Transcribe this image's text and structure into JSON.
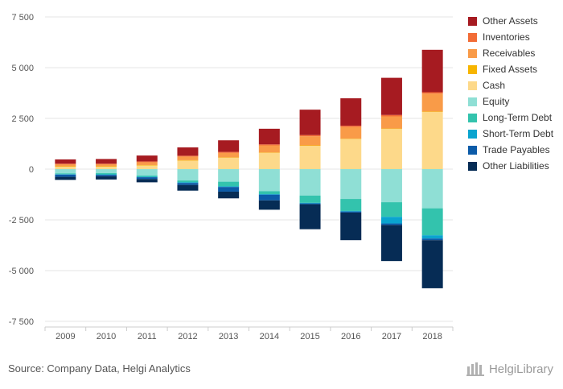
{
  "chart_data": {
    "type": "bar",
    "stacked": true,
    "categories": [
      "2009",
      "2010",
      "2011",
      "2012",
      "2013",
      "2014",
      "2015",
      "2016",
      "2017",
      "2018"
    ],
    "ylim": [
      -7500,
      7500
    ],
    "yticks": [
      7500,
      5000,
      2500,
      0,
      -2500,
      -5000,
      -7500
    ],
    "ytick_labels": [
      "7 500",
      "5 000",
      "2 500",
      "0",
      "-2 500",
      "-5 000",
      "-7 500"
    ],
    "grid": true,
    "legend_position": "right",
    "series": [
      {
        "name": "Cash",
        "color": "#fdd98a",
        "group": "assets",
        "values": [
          120,
          120,
          180,
          420,
          560,
          800,
          1150,
          1480,
          1980,
          2820
        ]
      },
      {
        "name": "Fixed Assets",
        "color": "#f7b500",
        "group": "assets",
        "values": [
          20,
          20,
          20,
          20,
          20,
          20,
          20,
          20,
          20,
          20
        ]
      },
      {
        "name": "Receivables",
        "color": "#f99b48",
        "group": "assets",
        "values": [
          100,
          100,
          140,
          180,
          220,
          350,
          450,
          580,
          600,
          880
        ]
      },
      {
        "name": "Inventories",
        "color": "#f26c36",
        "group": "assets",
        "values": [
          30,
          30,
          40,
          40,
          50,
          50,
          60,
          60,
          70,
          70
        ]
      },
      {
        "name": "Other Assets",
        "color": "#a61b21",
        "group": "assets",
        "values": [
          210,
          230,
          290,
          410,
          570,
          770,
          1250,
          1350,
          1830,
          2090
        ]
      },
      {
        "name": "Equity",
        "color": "#8fdfd5",
        "group": "liabilities",
        "values": [
          -210,
          -200,
          -320,
          -560,
          -620,
          -1090,
          -1300,
          -1470,
          -1630,
          -1930
        ]
      },
      {
        "name": "Long-Term Debt",
        "color": "#33c3ad",
        "group": "liabilities",
        "values": [
          -40,
          -60,
          -60,
          -90,
          -230,
          -140,
          -360,
          -590,
          -720,
          -1330
        ]
      },
      {
        "name": "Short-Term Debt",
        "color": "#0aa4cf",
        "group": "liabilities",
        "values": [
          -20,
          -20,
          -20,
          -30,
          -30,
          -30,
          -30,
          -30,
          -330,
          -160
        ]
      },
      {
        "name": "Trade Payables",
        "color": "#0c5ba8",
        "group": "liabilities",
        "values": [
          -110,
          -70,
          -90,
          -100,
          -230,
          -280,
          -40,
          -50,
          -70,
          -80
        ]
      },
      {
        "name": "Other Liabilities",
        "color": "#062c55",
        "group": "liabilities",
        "values": [
          -150,
          -160,
          -160,
          -280,
          -330,
          -460,
          -1230,
          -1360,
          -1780,
          -2370
        ]
      }
    ]
  },
  "legend_order": [
    "Other Assets",
    "Inventories",
    "Receivables",
    "Fixed Assets",
    "Cash",
    "Equity",
    "Long-Term Debt",
    "Short-Term Debt",
    "Trade Payables",
    "Other Liabilities"
  ],
  "footer": {
    "source": "Source: Company Data, Helgi Analytics",
    "brand": "HelgiLibrary"
  }
}
